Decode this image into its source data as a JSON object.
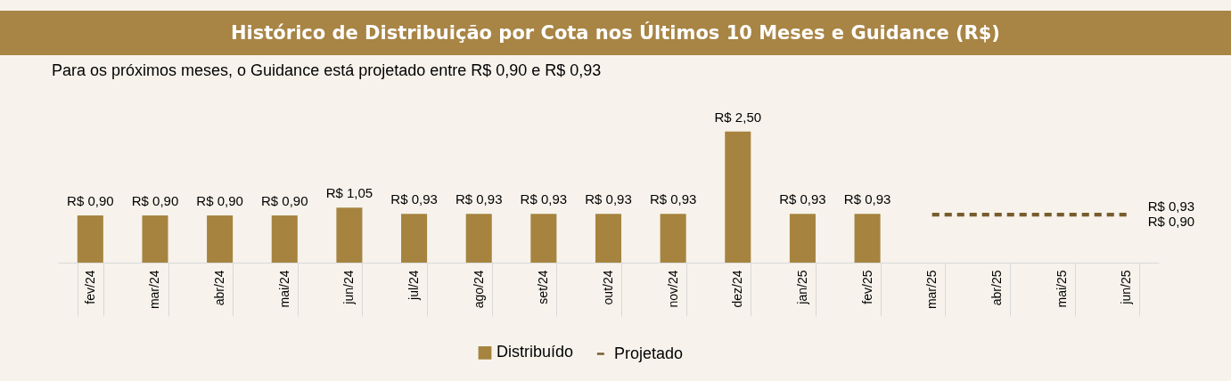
{
  "chart_data": {
    "type": "bar",
    "title": "Histórico de Distribuição por Cota nos Últimos 10 Meses e Guidance (R$)",
    "subtitle": "Para os próximos meses, o Guidance está projetado entre R$ 0,90 e R$ 0,93",
    "categories": [
      "fev/24",
      "mar/24",
      "abr/24",
      "mai/24",
      "jun/24",
      "jul/24",
      "ago/24",
      "set/24",
      "out/24",
      "nov/24",
      "dez/24",
      "jan/25",
      "fev/25",
      "mar/25",
      "abr/25",
      "mai/25",
      "jun/25"
    ],
    "series": [
      {
        "name": "Distribuído",
        "color": "#a6843f",
        "values": [
          0.9,
          0.9,
          0.9,
          0.9,
          1.05,
          0.93,
          0.93,
          0.93,
          0.93,
          0.93,
          2.5,
          0.93,
          0.93,
          null,
          null,
          null,
          null
        ],
        "value_labels": [
          "R$ 0,90",
          "R$ 0,90",
          "R$ 0,90",
          "R$ 0,90",
          "R$ 1,05",
          "R$ 0,93",
          "R$ 0,93",
          "R$ 0,93",
          "R$ 0,93",
          "R$ 0,93",
          "R$ 2,50",
          "R$ 0,93",
          "R$ 0,93",
          null,
          null,
          null,
          null
        ]
      },
      {
        "name": "Projetado",
        "type": "line",
        "line_style": "dashed",
        "color": "#7a5c2e",
        "values": [
          null,
          null,
          null,
          null,
          null,
          null,
          null,
          null,
          null,
          null,
          null,
          null,
          null,
          0.93,
          0.93,
          0.93,
          0.93
        ],
        "value_labels": [
          null,
          null,
          null,
          null,
          null,
          null,
          null,
          null,
          null,
          null,
          null,
          null,
          null,
          null,
          null,
          null,
          "R$ 0,93"
        ]
      },
      {
        "type": "line",
        "line_style": "dashed",
        "color": "#7a5c2e",
        "values": [
          null,
          null,
          null,
          null,
          null,
          null,
          null,
          null,
          null,
          null,
          null,
          null,
          null,
          0.9,
          0.9,
          0.9,
          0.9
        ],
        "value_labels": [
          null,
          null,
          null,
          null,
          null,
          null,
          null,
          null,
          null,
          null,
          null,
          null,
          null,
          null,
          null,
          null,
          "R$ 0,90"
        ]
      }
    ],
    "legend": "bottom",
    "grid": false
  }
}
